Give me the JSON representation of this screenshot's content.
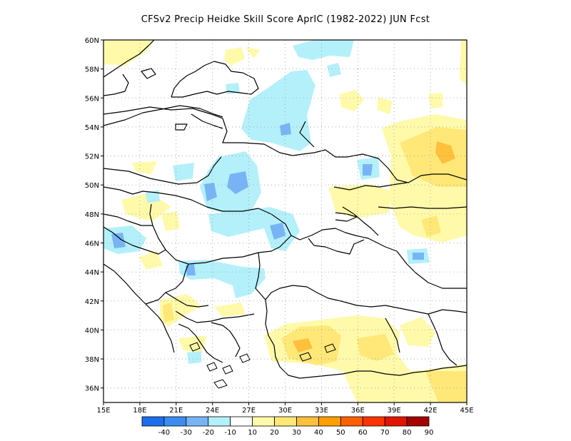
{
  "title": "CFSv2 Precip Heidke Skill Score AprIC (1982-2022) JUN Fcst",
  "map": {
    "lon_range": [
      15,
      45
    ],
    "lat_range": [
      35,
      60
    ],
    "lon_ticks": [
      "15E",
      "18E",
      "21E",
      "24E",
      "27E",
      "30E",
      "33E",
      "36E",
      "39E",
      "42E",
      "45E"
    ],
    "lat_ticks": [
      "36N",
      "38N",
      "40N",
      "42N",
      "44N",
      "46N",
      "48N",
      "50N",
      "52N",
      "54N",
      "56N",
      "58N",
      "60N"
    ],
    "gridlines": true
  },
  "colorbar": {
    "labels": [
      "-40",
      "-30",
      "-20",
      "-10",
      "10",
      "20",
      "30",
      "40",
      "50",
      "60",
      "70",
      "80",
      "90"
    ],
    "colors": [
      "#1e6eeb",
      "#3c8cf0",
      "#78b4f5",
      "#b4f0fa",
      "#ffffff",
      "#fffaaa",
      "#ffe878",
      "#ffc03c",
      "#ffa000",
      "#ff6000",
      "#ff3200",
      "#e11400",
      "#a50000"
    ]
  }
}
